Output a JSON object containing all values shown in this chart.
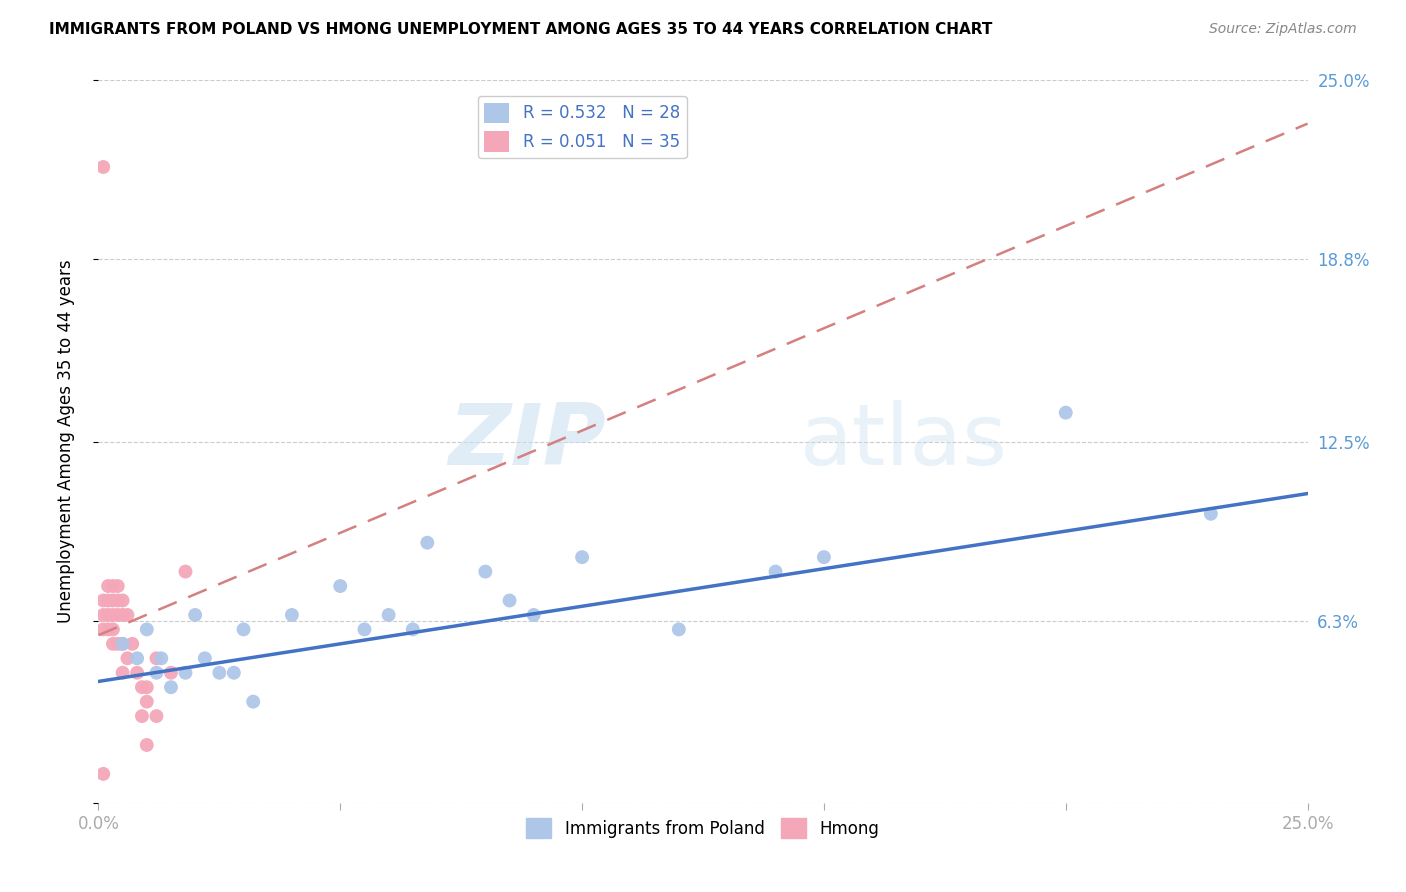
{
  "title": "IMMIGRANTS FROM POLAND VS HMONG UNEMPLOYMENT AMONG AGES 35 TO 44 YEARS CORRELATION CHART",
  "source": "Source: ZipAtlas.com",
  "ylabel": "Unemployment Among Ages 35 to 44 years",
  "xlim": [
    0.0,
    0.25
  ],
  "ylim": [
    0.0,
    0.25
  ],
  "yticks": [
    0.0,
    0.063,
    0.125,
    0.188,
    0.25
  ],
  "ytick_labels": [
    "",
    "6.3%",
    "12.5%",
    "18.8%",
    "25.0%"
  ],
  "xticks": [
    0.0,
    0.05,
    0.1,
    0.15,
    0.2,
    0.25
  ],
  "xtick_labels": [
    "0.0%",
    "",
    "",
    "",
    "",
    "25.0%"
  ],
  "legend_entries": [
    {
      "label_r": "R = 0.532",
      "label_n": "N = 28",
      "color": "#aec6e8"
    },
    {
      "label_r": "R = 0.051",
      "label_n": "N = 35",
      "color": "#f4a7b9"
    }
  ],
  "poland_scatter_x": [
    0.005,
    0.008,
    0.01,
    0.012,
    0.013,
    0.015,
    0.018,
    0.02,
    0.022,
    0.025,
    0.028,
    0.03,
    0.032,
    0.04,
    0.05,
    0.055,
    0.06,
    0.065,
    0.068,
    0.08,
    0.085,
    0.09,
    0.1,
    0.12,
    0.14,
    0.15,
    0.2,
    0.23
  ],
  "poland_scatter_y": [
    0.055,
    0.05,
    0.06,
    0.045,
    0.05,
    0.04,
    0.045,
    0.065,
    0.05,
    0.045,
    0.045,
    0.06,
    0.035,
    0.065,
    0.075,
    0.06,
    0.065,
    0.06,
    0.09,
    0.08,
    0.07,
    0.065,
    0.085,
    0.06,
    0.08,
    0.085,
    0.135,
    0.1
  ],
  "hmong_scatter_x": [
    0.001,
    0.001,
    0.001,
    0.001,
    0.002,
    0.002,
    0.002,
    0.002,
    0.003,
    0.003,
    0.003,
    0.003,
    0.003,
    0.004,
    0.004,
    0.004,
    0.004,
    0.005,
    0.005,
    0.005,
    0.005,
    0.006,
    0.006,
    0.007,
    0.008,
    0.009,
    0.009,
    0.01,
    0.01,
    0.01,
    0.012,
    0.012,
    0.015,
    0.018,
    0.001
  ],
  "hmong_scatter_y": [
    0.22,
    0.07,
    0.065,
    0.06,
    0.075,
    0.07,
    0.065,
    0.06,
    0.075,
    0.07,
    0.065,
    0.06,
    0.055,
    0.075,
    0.07,
    0.065,
    0.055,
    0.07,
    0.065,
    0.055,
    0.045,
    0.065,
    0.05,
    0.055,
    0.045,
    0.04,
    0.03,
    0.04,
    0.035,
    0.02,
    0.05,
    0.03,
    0.045,
    0.08,
    0.01
  ],
  "poland_line_x": [
    0.0,
    0.25
  ],
  "poland_line_y": [
    0.042,
    0.107
  ],
  "hmong_line_x": [
    0.0,
    0.25
  ],
  "hmong_line_y": [
    0.058,
    0.235
  ],
  "poland_line_color": "#4472c4",
  "hmong_line_color": "#d48080",
  "scatter_poland_color": "#aec6e8",
  "scatter_hmong_color": "#f4a7b9",
  "scatter_size": 100,
  "watermark_zip": "ZIP",
  "watermark_atlas": "atlas",
  "background_color": "#ffffff",
  "grid_color": "#cccccc",
  "tick_label_color": "#5b9bd5",
  "title_fontsize": 11,
  "source_fontsize": 10,
  "ylabel_fontsize": 12,
  "tick_fontsize": 12,
  "legend_fontsize": 12,
  "bottom_legend_labels": [
    "Immigrants from Poland",
    "Hmong"
  ]
}
